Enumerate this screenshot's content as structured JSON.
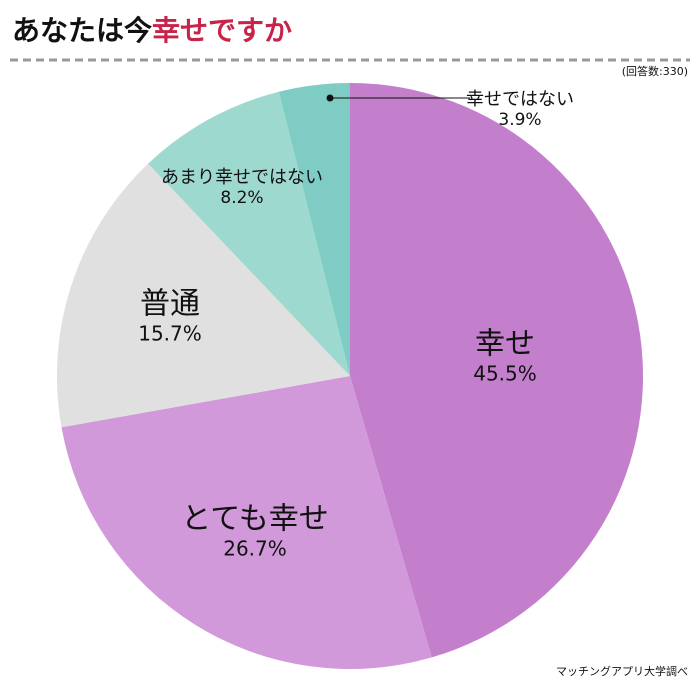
{
  "chart_data": {
    "type": "pie",
    "title": "あなたは今",
    "title_highlight": "幸せですか",
    "note": "(回答数:330)",
    "source": "マッチングアプリ大学調べ",
    "categories": [
      "幸せ",
      "とても幸せ",
      "普通",
      "あまり幸せではない",
      "幸せではない"
    ],
    "values": [
      45.5,
      26.7,
      15.7,
      8.2,
      3.9
    ],
    "value_labels": [
      "45.5%",
      "26.7%",
      "15.7%",
      "8.2%",
      "3.9%"
    ],
    "colors": [
      "#c47fcc",
      "#d199d9",
      "#e0e0e0",
      "#9ed9d0",
      "#7fccc4"
    ]
  }
}
